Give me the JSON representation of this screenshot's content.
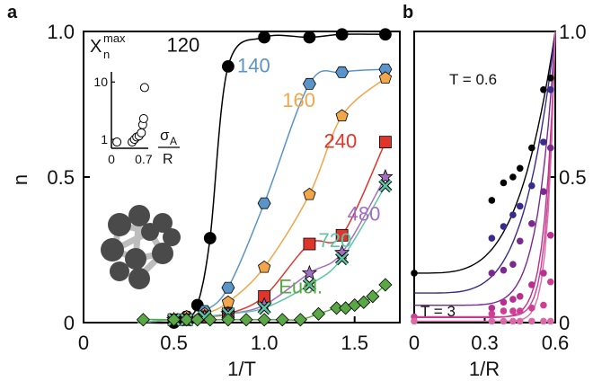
{
  "chart_data": [
    {
      "panel": "a",
      "type": "scatter",
      "xlabel": "1/T",
      "ylabel": "n",
      "xlim": [
        0,
        1.75
      ],
      "ylim": [
        0,
        1.0
      ],
      "xticks": [
        "0",
        "0.5",
        "1.0",
        "1.5"
      ],
      "yticks": [
        "0",
        "0.5",
        "1.0"
      ],
      "grid": false,
      "series": [
        {
          "name": "120",
          "color": "#000000",
          "marker": "circle",
          "x": [
            0.5,
            0.57,
            0.63,
            0.7,
            0.8,
            1.0,
            1.25,
            1.43,
            1.67
          ],
          "y": [
            0.0,
            0.02,
            0.06,
            0.29,
            0.88,
            0.98,
            0.98,
            0.99,
            0.99
          ]
        },
        {
          "name": "140",
          "color": "#5b94c9",
          "marker": "hexagon",
          "x": [
            0.5,
            0.57,
            0.67,
            0.8,
            1.0,
            1.25,
            1.43,
            1.67
          ],
          "y": [
            0.01,
            0.02,
            0.04,
            0.12,
            0.41,
            0.82,
            0.86,
            0.87
          ]
        },
        {
          "name": "160",
          "color": "#f0a64a",
          "marker": "pentagon",
          "x": [
            0.5,
            0.57,
            0.67,
            0.8,
            1.0,
            1.25,
            1.43,
            1.67
          ],
          "y": [
            0.01,
            0.02,
            0.03,
            0.07,
            0.19,
            0.44,
            0.71,
            0.84
          ]
        },
        {
          "name": "240",
          "color": "#e0352b",
          "marker": "square",
          "x": [
            0.5,
            0.57,
            0.67,
            0.8,
            1.0,
            1.25,
            1.43,
            1.67
          ],
          "y": [
            0.01,
            0.01,
            0.02,
            0.03,
            0.09,
            0.27,
            0.3,
            0.62
          ]
        },
        {
          "name": "480",
          "color": "#a26fc0",
          "marker": "star",
          "x": [
            0.5,
            0.57,
            0.67,
            0.8,
            1.0,
            1.25,
            1.43,
            1.67
          ],
          "y": [
            0.01,
            0.01,
            0.02,
            0.03,
            0.06,
            0.17,
            0.24,
            0.5
          ]
        },
        {
          "name": "720",
          "color": "#5fc4a4",
          "marker": "x",
          "x": [
            0.5,
            0.57,
            0.67,
            0.8,
            1.0,
            1.25,
            1.43,
            1.67
          ],
          "y": [
            0.01,
            0.01,
            0.02,
            0.03,
            0.05,
            0.13,
            0.22,
            0.47
          ]
        },
        {
          "name": "Eucl.",
          "color": "#5aa845",
          "marker": "diamond",
          "x": [
            0.33,
            0.5,
            0.57,
            0.63,
            0.7,
            0.8,
            0.9,
            1.0,
            1.1,
            1.2,
            1.3,
            1.4,
            1.45,
            1.5,
            1.55,
            1.6,
            1.67
          ],
          "y": [
            0.01,
            0.01,
            0.01,
            0.01,
            0.01,
            0.01,
            0.01,
            0.01,
            0.01,
            0.01,
            0.03,
            0.05,
            0.05,
            0.06,
            0.07,
            0.09,
            0.13
          ]
        }
      ],
      "inset": {
        "ylabel": "X_n^max",
        "ylabel_main": "X",
        "ylabel_sub": "n",
        "ylabel_sup": "max",
        "xlabel_num": "σ",
        "xlabel_sub": "A",
        "xlabel_den": "R",
        "xticks": [
          "0",
          "0.7"
        ],
        "yticks": [
          "1",
          "10"
        ],
        "yscale": "log",
        "xlim": [
          0,
          0.8
        ],
        "ylim": [
          0.7,
          15
        ],
        "x": [
          0.12,
          0.45,
          0.5,
          0.55,
          0.6,
          0.65,
          0.68,
          0.7,
          0.72
        ],
        "y": [
          0.9,
          0.9,
          1.0,
          1.1,
          1.15,
          1.3,
          1.8,
          2.3,
          8.0
        ]
      }
    },
    {
      "panel": "b",
      "type": "scatter",
      "xlabel": "1/R",
      "ylabel": "",
      "xlim": [
        0,
        0.6
      ],
      "ylim": [
        0,
        1.0
      ],
      "xticks": [
        "0",
        "0.3",
        "0.6"
      ],
      "yticks": [
        "0",
        "0.5",
        "1.0"
      ],
      "y_axis_side": "right",
      "annotations": [
        "T = 0.6",
        "T = 3"
      ],
      "series": [
        {
          "name": "T = 0.6",
          "color": "#000000",
          "x": [
            0.0,
            0.33,
            0.38,
            0.42,
            0.45,
            0.5,
            0.55,
            0.58
          ],
          "y": [
            0.17,
            0.42,
            0.48,
            0.5,
            0.53,
            0.6,
            0.8,
            0.84
          ]
        },
        {
          "name": "",
          "color": "#3b2a8c",
          "x": [
            0.33,
            0.38,
            0.42,
            0.45,
            0.5,
            0.55,
            0.58
          ],
          "y": [
            0.29,
            0.33,
            0.37,
            0.4,
            0.47,
            0.62,
            0.8
          ]
        },
        {
          "name": "",
          "color": "#7a2a8e",
          "x": [
            0.33,
            0.38,
            0.42,
            0.45,
            0.5,
            0.55,
            0.58
          ],
          "y": [
            0.17,
            0.18,
            0.2,
            0.28,
            0.34,
            0.45,
            0.6
          ]
        },
        {
          "name": "",
          "color": "#b8308f",
          "x": [
            0.33,
            0.38,
            0.42,
            0.45,
            0.5,
            0.55,
            0.58
          ],
          "y": [
            0.05,
            0.07,
            0.08,
            0.09,
            0.13,
            0.17,
            0.3
          ]
        },
        {
          "name": "",
          "color": "#cf3f91",
          "x": [
            0.0,
            0.33,
            0.38,
            0.42,
            0.45,
            0.5,
            0.55,
            0.58
          ],
          "y": [
            0.02,
            0.03,
            0.04,
            0.04,
            0.04,
            0.05,
            0.06,
            0.14
          ]
        },
        {
          "name": "T = 3",
          "color": "#d96aa6",
          "x": [
            0.0,
            0.33,
            0.38,
            0.42,
            0.45,
            0.5,
            0.55,
            0.58
          ],
          "y": [
            0.005,
            0.005,
            0.005,
            0.005,
            0.005,
            0.005,
            0.005,
            0.005
          ]
        }
      ]
    }
  ],
  "labels": {
    "panel_a": "a",
    "panel_b": "b",
    "a_ylabel": "n",
    "a_xlabel": "1/T",
    "b_xlabel": "1/R",
    "b_top_annotation": "T = 0.6",
    "b_bottom_annotation": "T = 3"
  }
}
